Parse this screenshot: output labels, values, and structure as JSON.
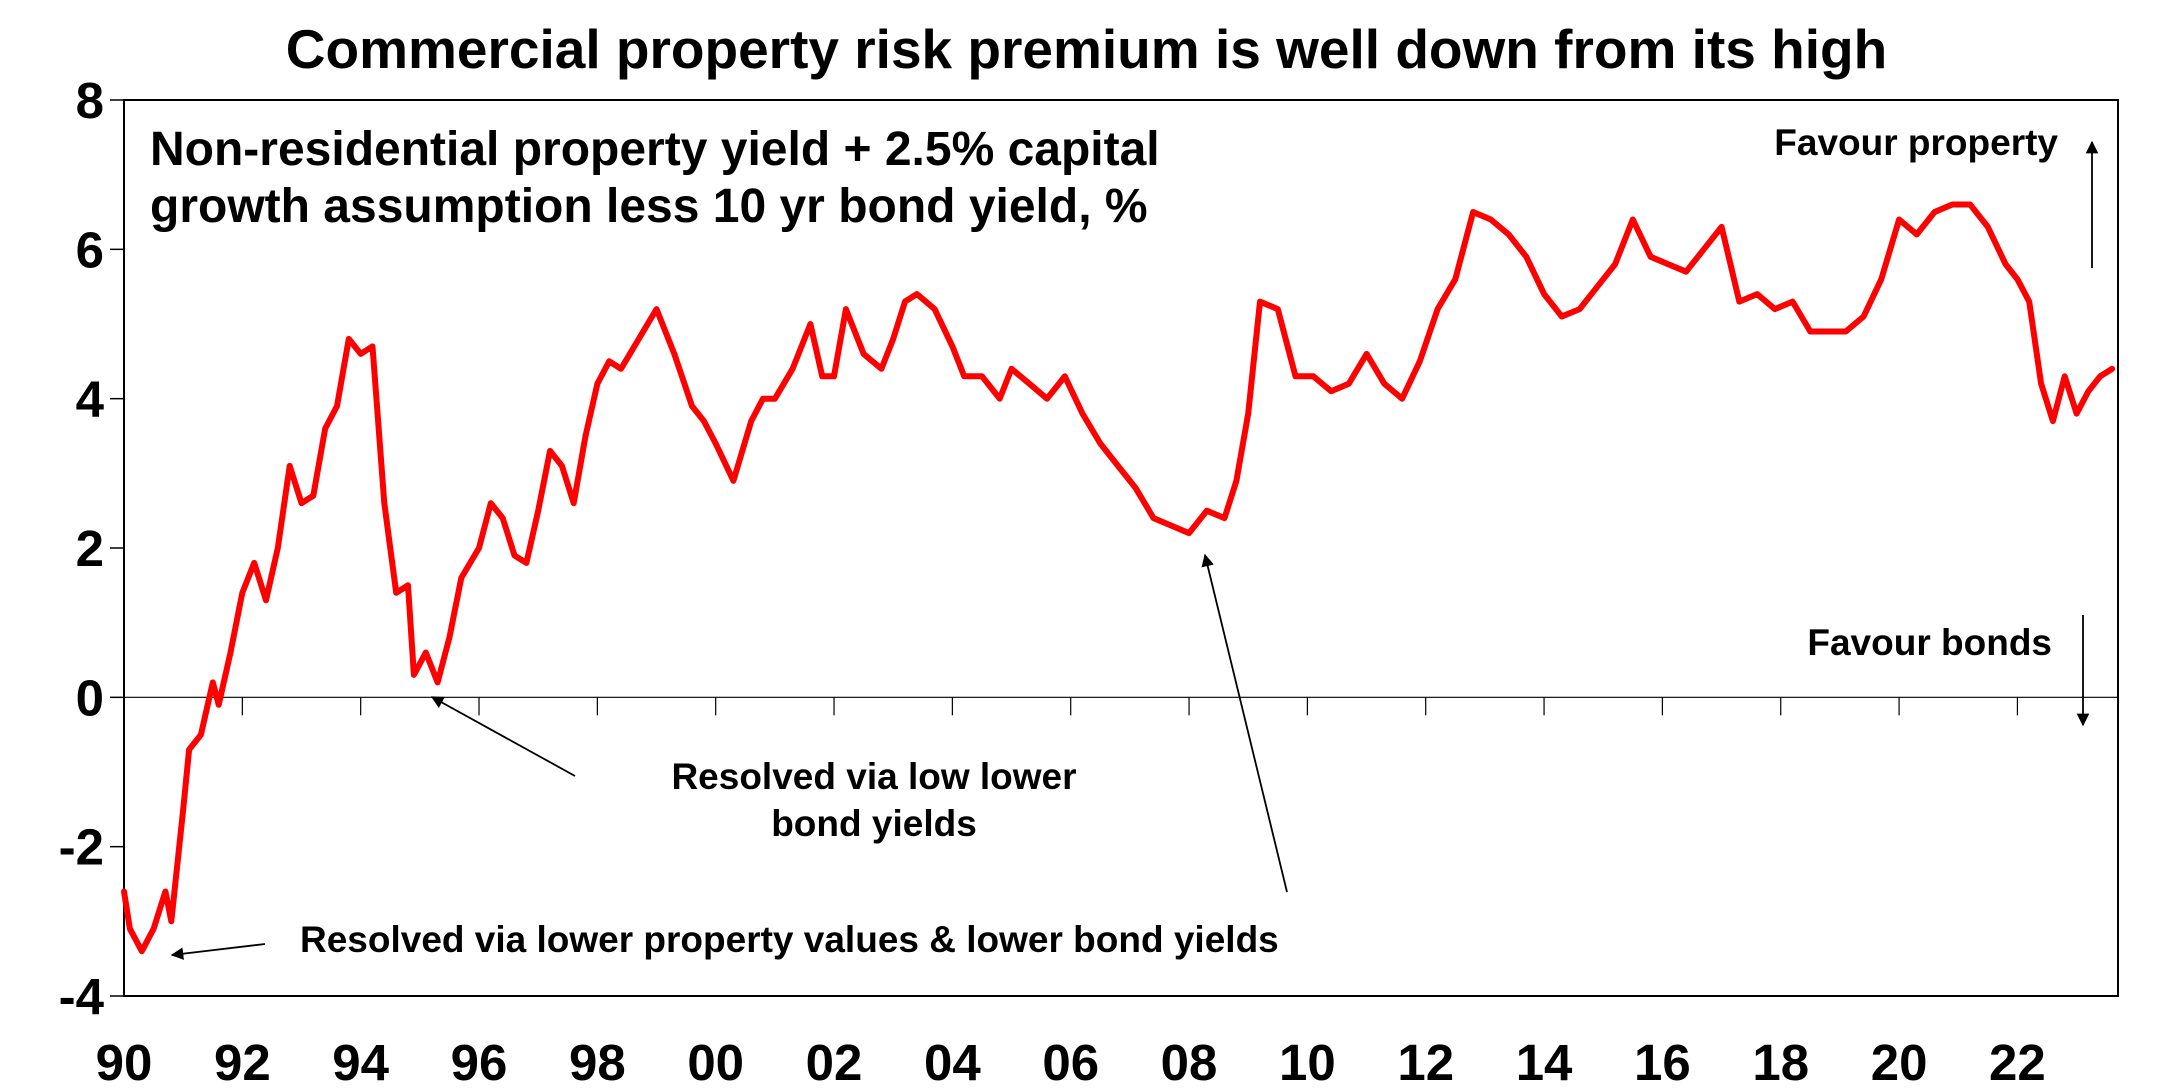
{
  "chart_data": {
    "type": "line",
    "title": "Commercial property risk premium is well down from its high",
    "subtitle_lines": [
      "Non-residential property yield + 2.5% capital",
      "growth assumption less 10 yr bond yield, %"
    ],
    "xlabel": "",
    "ylabel": "",
    "xlim": [
      1990,
      2023.7
    ],
    "ylim": [
      -4,
      8
    ],
    "yticks": [
      -4,
      -2,
      0,
      2,
      4,
      6,
      8
    ],
    "ytick_labels": [
      "-4",
      "-2",
      "0",
      "2",
      "4",
      "6",
      "8"
    ],
    "xticks": [
      1990,
      1992,
      1994,
      1996,
      1998,
      2000,
      2002,
      2004,
      2006,
      2008,
      2010,
      2012,
      2014,
      2016,
      2018,
      2020,
      2022
    ],
    "xtick_labels": [
      "90",
      "92",
      "94",
      "96",
      "98",
      "00",
      "02",
      "04",
      "06",
      "08",
      "10",
      "12",
      "14",
      "16",
      "18",
      "20",
      "22"
    ],
    "grid": false,
    "legend": "none",
    "series": [
      {
        "color": "#ff0000",
        "x": [
          1990.0,
          1990.1,
          1990.3,
          1990.5,
          1990.7,
          1990.8,
          1991.0,
          1991.1,
          1991.3,
          1991.5,
          1991.6,
          1991.8,
          1992.0,
          1992.2,
          1992.4,
          1992.6,
          1992.8,
          1993.0,
          1993.2,
          1993.4,
          1993.6,
          1993.8,
          1994.0,
          1994.2,
          1994.4,
          1994.6,
          1994.8,
          1994.9,
          1995.1,
          1995.3,
          1995.5,
          1995.7,
          1996.0,
          1996.2,
          1996.4,
          1996.6,
          1996.8,
          1997.0,
          1997.2,
          1997.4,
          1997.6,
          1997.8,
          1998.0,
          1998.2,
          1998.4,
          1998.7,
          1999.0,
          1999.3,
          1999.6,
          1999.8,
          2000.0,
          2000.3,
          2000.6,
          2000.8,
          2001.0,
          2001.3,
          2001.6,
          2001.8,
          2002.0,
          2002.2,
          2002.5,
          2002.8,
          2003.0,
          2003.2,
          2003.4,
          2003.7,
          2004.0,
          2004.2,
          2004.5,
          2004.8,
          2005.0,
          2005.3,
          2005.6,
          2005.9,
          2006.2,
          2006.5,
          2006.8,
          2007.1,
          2007.4,
          2007.7,
          2008.0,
          2008.3,
          2008.6,
          2008.8,
          2009.0,
          2009.2,
          2009.5,
          2009.8,
          2010.1,
          2010.4,
          2010.7,
          2011.0,
          2011.3,
          2011.6,
          2011.9,
          2012.2,
          2012.5,
          2012.8,
          2013.1,
          2013.4,
          2013.7,
          2014.0,
          2014.3,
          2014.6,
          2014.9,
          2015.2,
          2015.5,
          2015.8,
          2016.1,
          2016.4,
          2016.7,
          2017.0,
          2017.3,
          2017.6,
          2017.9,
          2018.2,
          2018.5,
          2018.8,
          2019.1,
          2019.4,
          2019.7,
          2020.0,
          2020.3,
          2020.6,
          2020.9,
          2021.2,
          2021.5,
          2021.8,
          2022.0,
          2022.2,
          2022.4,
          2022.6,
          2022.8,
          2023.0,
          2023.2,
          2023.4,
          2023.6
        ],
        "values": [
          -2.6,
          -3.1,
          -3.4,
          -3.1,
          -2.6,
          -3.0,
          -1.5,
          -0.7,
          -0.5,
          0.2,
          -0.1,
          0.6,
          1.4,
          1.8,
          1.3,
          2.0,
          3.1,
          2.6,
          2.7,
          3.6,
          3.9,
          4.8,
          4.6,
          4.7,
          2.6,
          1.4,
          1.5,
          0.3,
          0.6,
          0.2,
          0.8,
          1.6,
          2.0,
          2.6,
          2.4,
          1.9,
          1.8,
          2.5,
          3.3,
          3.1,
          2.6,
          3.5,
          4.2,
          4.5,
          4.4,
          4.8,
          5.2,
          4.6,
          3.9,
          3.7,
          3.4,
          2.9,
          3.7,
          4.0,
          4.0,
          4.4,
          5.0,
          4.3,
          4.3,
          5.2,
          4.6,
          4.4,
          4.8,
          5.3,
          5.4,
          5.2,
          4.7,
          4.3,
          4.3,
          4.0,
          4.4,
          4.2,
          4.0,
          4.3,
          3.8,
          3.4,
          3.1,
          2.8,
          2.4,
          2.3,
          2.2,
          2.5,
          2.4,
          2.9,
          3.8,
          5.3,
          5.2,
          4.3,
          4.3,
          4.1,
          4.2,
          4.6,
          4.2,
          4.0,
          4.5,
          5.2,
          5.6,
          6.5,
          6.4,
          6.2,
          5.9,
          5.4,
          5.1,
          5.2,
          5.5,
          5.8,
          6.4,
          5.9,
          5.8,
          5.7,
          6.0,
          6.3,
          5.3,
          5.4,
          5.2,
          5.3,
          4.9,
          4.9,
          4.9,
          5.1,
          5.6,
          6.4,
          6.2,
          6.5,
          6.6,
          6.6,
          6.3,
          5.8,
          5.6,
          5.3,
          4.2,
          3.7,
          4.3,
          3.8,
          4.1,
          4.3,
          4.4
        ]
      }
    ],
    "annotations": {
      "favour_property": "Favour property",
      "favour_bonds": "Favour bonds",
      "resolved_bonds_1": "Resolved via low lower",
      "resolved_bonds_2": "bond yields",
      "resolved_property": "Resolved via lower property values & lower bond yields"
    }
  }
}
